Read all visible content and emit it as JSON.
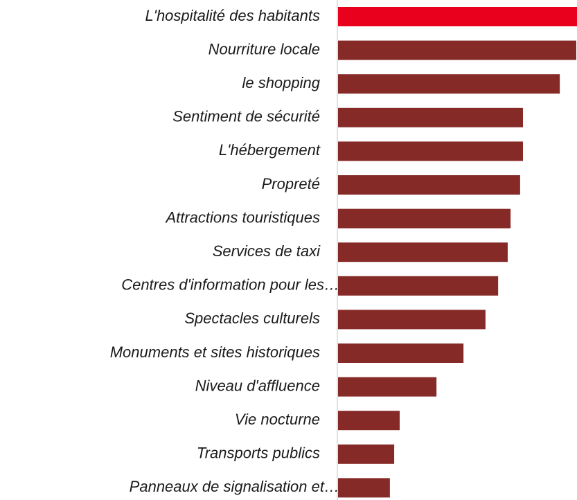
{
  "chart_data": {
    "type": "barh",
    "categories": [
      "L'hospitalité des habitants",
      "Nourriture locale",
      "le shopping",
      "Sentiment de sécurité",
      "L'hébergement",
      "Propreté",
      "Attractions touristiques",
      "Services de taxi",
      "Centres d'information pour les…",
      "Spectacles culturels",
      "Monuments et sites historiques",
      "Niveau d'affluence",
      "Vie nocturne",
      "Transports publics",
      "Panneaux de signalisation et…"
    ],
    "values": [
      100,
      99.7,
      92.8,
      77.4,
      77.4,
      76.2,
      72.2,
      71.0,
      67.0,
      61.7,
      52.5,
      41.2,
      25.8,
      23.5,
      21.7
    ],
    "colors": [
      "#e8001c",
      "#862a28",
      "#862a28",
      "#862a28",
      "#862a28",
      "#862a28",
      "#862a28",
      "#862a28",
      "#862a28",
      "#862a28",
      "#862a28",
      "#862a28",
      "#862a28",
      "#862a28",
      "#862a28"
    ],
    "xlim": [
      0,
      100
    ]
  }
}
